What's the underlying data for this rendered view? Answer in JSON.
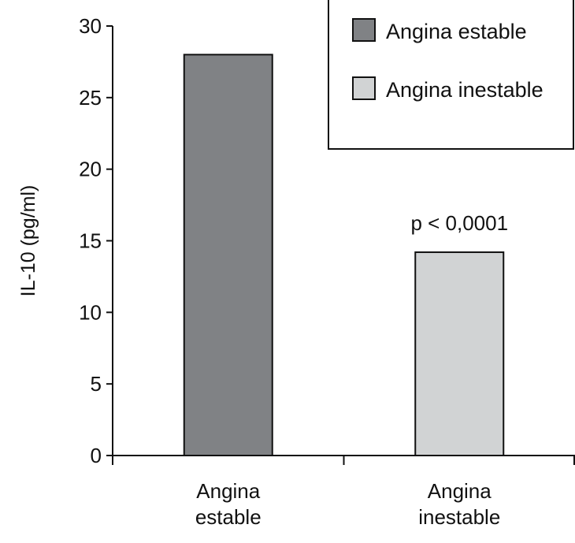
{
  "chart_data": {
    "type": "bar",
    "title": "",
    "xlabel": "",
    "ylabel": "IL-10 (pg/ml)",
    "ylim": [
      0,
      30
    ],
    "yticks": [
      0,
      5,
      10,
      15,
      20,
      25,
      30
    ],
    "categories": [
      "Angina estable",
      "Angina inestable"
    ],
    "category_lines": [
      [
        "Angina",
        "estable"
      ],
      [
        "Angina",
        "inestable"
      ]
    ],
    "values": [
      28,
      14.2
    ],
    "colors": [
      "#808285",
      "#d1d3d4"
    ],
    "legend": {
      "placement": "top-right",
      "entries": [
        {
          "label": "Angina estable",
          "color": "#808285"
        },
        {
          "label": "Angina inestable",
          "color": "#d1d3d4"
        }
      ]
    },
    "annotations": [
      {
        "text": "p < 0,0001",
        "category": "Angina inestable"
      }
    ],
    "grid": false
  }
}
